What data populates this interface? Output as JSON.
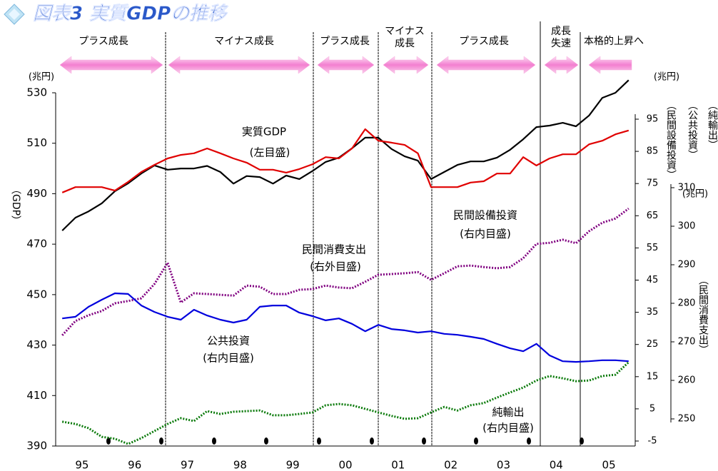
{
  "chart_data": {
    "type": "line",
    "title": "図表3 実質GDPの推移",
    "categories": [
      null,
      "95",
      null,
      null,
      null,
      "96",
      null,
      null,
      null,
      "97",
      null,
      null,
      null,
      "98",
      null,
      null,
      null,
      "99",
      null,
      null,
      null,
      "00",
      null,
      null,
      null,
      "01",
      null,
      null,
      null,
      "02",
      null,
      null,
      null,
      "03",
      null,
      null,
      null,
      "04",
      null,
      null,
      null,
      "05",
      null,
      null
    ],
    "series": [
      {
        "name": "実質GDP",
        "note": "(左目盛)",
        "color": "#000000",
        "axis": "y",
        "dotted": false,
        "values": [
          475.4,
          480.5,
          483,
          486.2,
          491,
          494.1,
          498,
          501.2,
          499.5,
          500,
          500,
          501,
          498.6,
          494,
          497,
          496.6,
          494,
          497.2,
          495.8,
          499,
          502.6,
          504.3,
          508,
          512.2,
          512.2,
          507.7,
          504.8,
          503.1,
          495.8,
          498.6,
          501.4,
          502.8,
          502.8,
          504.3,
          507.4,
          511.6,
          516.4,
          517,
          518.1,
          516.7,
          521,
          528,
          530,
          535
        ]
      },
      {
        "name": "民間設備投資",
        "note": "(右内目盛)",
        "color": "#e00000",
        "axis": "y2",
        "dotted": false,
        "values": [
          72.2,
          73.9,
          73.9,
          73.9,
          72.8,
          75.5,
          78.6,
          80.8,
          82.8,
          83.9,
          84.4,
          85.9,
          84.4,
          82.8,
          81.5,
          79.3,
          79.3,
          78.4,
          79.5,
          81,
          83.2,
          82.8,
          85.9,
          91.9,
          88.3,
          87.7,
          87,
          84.4,
          73.9,
          73.9,
          73.9,
          75.3,
          75.7,
          78.1,
          78.1,
          83.2,
          80.6,
          82.8,
          84.1,
          84.1,
          87.2,
          88.3,
          90.3,
          91.5
        ]
      },
      {
        "name": "民間消費支出",
        "note": "(右外目盛)",
        "color": "#800080",
        "axis": "y3",
        "dotted": true,
        "values": [
          271.7,
          275.4,
          276.9,
          278,
          280,
          280.6,
          281.3,
          285,
          290.5,
          280.2,
          282.6,
          282.4,
          282.2,
          282,
          284.6,
          284.3,
          282.4,
          282.4,
          283.5,
          283.7,
          284.6,
          284.1,
          283.9,
          285.6,
          287.4,
          287.6,
          287.8,
          288.1,
          286.1,
          287.8,
          289.6,
          289.8,
          289.4,
          289.1,
          289.4,
          291.7,
          295.4,
          295.7,
          296.5,
          295.6,
          298.7,
          300.9,
          302,
          304.6
        ]
      },
      {
        "name": "公共投資",
        "note": "(右内目盛)",
        "color": "#0000dd",
        "axis": "y2",
        "dotted": false,
        "values": [
          33.1,
          33.6,
          36.7,
          38.9,
          40.9,
          40.7,
          37.1,
          35.1,
          33.6,
          32.7,
          35.8,
          34,
          32.7,
          31.8,
          32.7,
          36.7,
          37.1,
          37.1,
          34.9,
          33.8,
          32.5,
          33.1,
          31.4,
          29.1,
          31.1,
          29.8,
          29.4,
          28.7,
          29.1,
          28.3,
          28,
          27.4,
          26.7,
          25.2,
          23.8,
          22.9,
          25.2,
          21.6,
          19.8,
          19.6,
          19.8,
          20.1,
          20.1,
          19.8
        ]
      },
      {
        "name": "純輸出",
        "note": "(右内目盛)",
        "color": "#0a7a0a",
        "axis": "y2",
        "dotted": true,
        "values": [
          1,
          0.3,
          -1,
          -3.7,
          -4.3,
          -5.9,
          -4.1,
          -1.9,
          0.3,
          2.1,
          1.2,
          4.3,
          3.4,
          4.1,
          4.3,
          4.5,
          3,
          3,
          3.4,
          3.9,
          6.1,
          6.5,
          6.1,
          5,
          3.9,
          2.8,
          1.9,
          2.1,
          3.9,
          5.6,
          4.5,
          6.1,
          6.8,
          8.5,
          10.1,
          11.6,
          13.8,
          15.2,
          14.5,
          13.6,
          13.8,
          15.2,
          15.6,
          19.5
        ]
      }
    ],
    "ylim": [
      390,
      530
    ],
    "yticks": [
      390,
      410,
      430,
      450,
      470,
      490,
      510,
      530
    ],
    "y2lim": [
      -5,
      95
    ],
    "y2ticks": [
      -5,
      5,
      15,
      25,
      35,
      45,
      55,
      65,
      75,
      85,
      95
    ],
    "y3lim": [
      250,
      310
    ],
    "y3ticks": [
      250,
      260,
      270,
      280,
      290,
      300,
      310
    ],
    "y_unit": "(兆円)",
    "y2_unit": "(兆円)",
    "y3_unit": "(兆円)",
    "ylabel": "（GDP）",
    "y2labels": [
      "（民間設備投資）",
      "（公共投資）",
      "（純輸出）"
    ],
    "y3label": "（民間消費支出）",
    "phases": [
      {
        "lines": [
          "プラス成長"
        ]
      },
      {
        "lines": [
          "マイナス成長"
        ]
      },
      {
        "lines": [
          "プラス成長"
        ]
      },
      {
        "lines": [
          "マイナス",
          "成長"
        ]
      },
      {
        "lines": [
          "プラス成長"
        ]
      },
      {
        "lines": [
          "成長",
          "失速"
        ]
      },
      {
        "lines": [
          "本格的上昇へ"
        ]
      }
    ]
  }
}
